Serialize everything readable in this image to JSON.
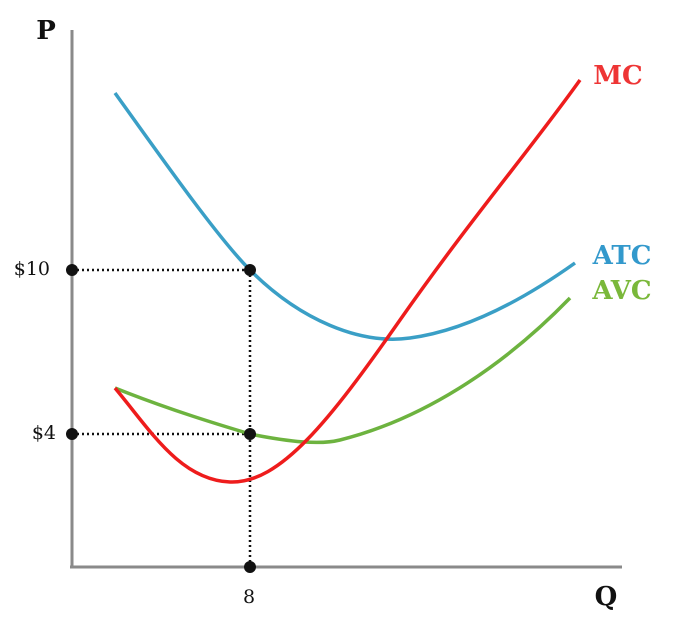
{
  "axes": {
    "y_label": "P",
    "x_label": "Q"
  },
  "curves": {
    "mc": "MC",
    "atc": "ATC",
    "avc": "AVC"
  },
  "ticks": {
    "price_high": "$10",
    "price_low": "$4",
    "quantity": "8"
  }
}
